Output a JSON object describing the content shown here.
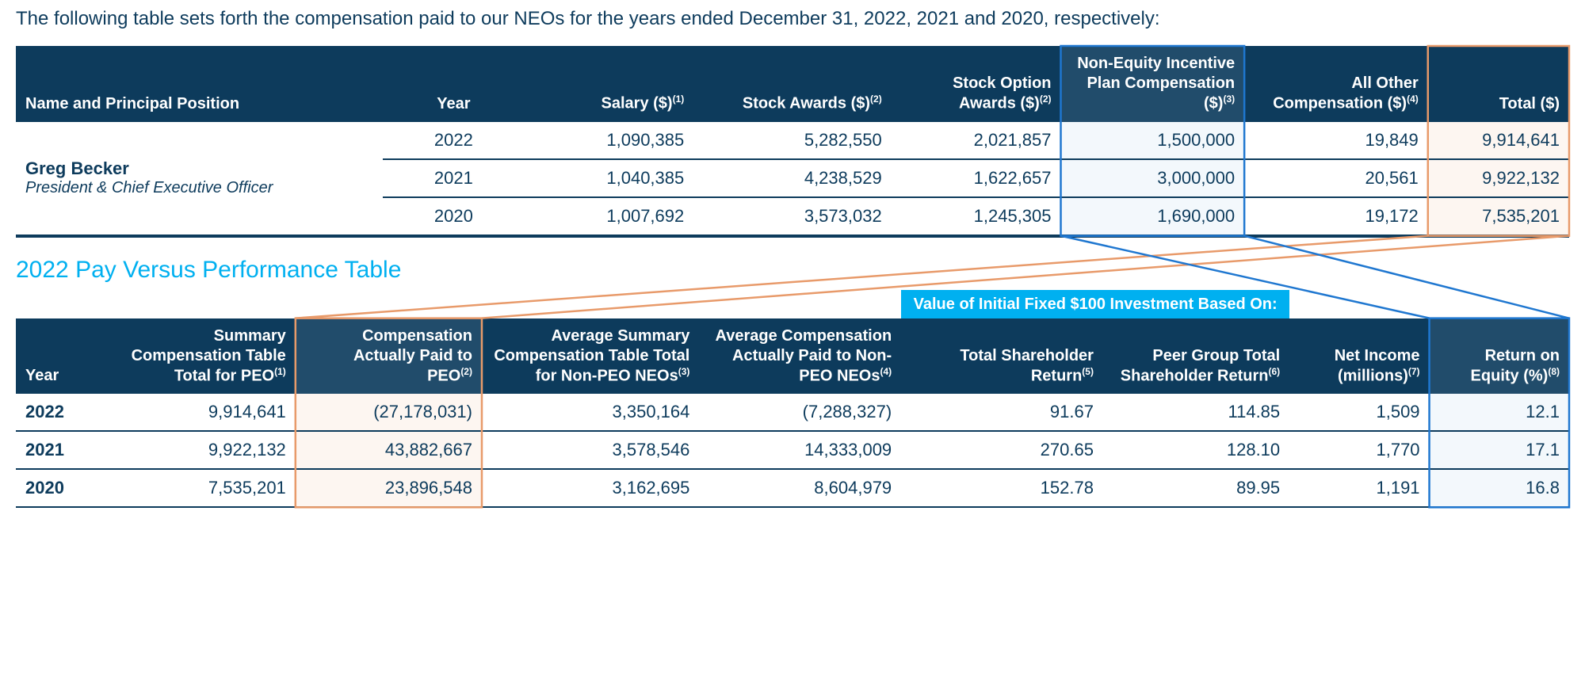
{
  "intro_text": "The following table sets forth the compensation paid to our NEOs for the years ended December 31, 2022, 2021 and 2020, respectively:",
  "section_title": "2022 Pay Versus Performance Table",
  "colors": {
    "header_bg": "#0d3b5c",
    "header_hl_bg": "#214c6b",
    "cyan": "#00b0f0",
    "cell_blue_hl": "#f3f8fc",
    "cell_orange_hl": "#fdf6f1",
    "border_blue": "#1f77d0",
    "border_orange": "#e89a6a",
    "text": "#0d3b5c"
  },
  "table1": {
    "col_widths_pct": [
      26,
      10,
      12,
      14,
      12,
      13,
      13,
      10
    ],
    "headers": {
      "name": "Name and Principal Position",
      "year": "Year",
      "salary": "Salary ($)",
      "salary_sup": "(1)",
      "stock_awards": "Stock Awards ($)",
      "stock_awards_sup": "(2)",
      "option_awards": "Stock Option Awards ($)",
      "option_awards_sup": "(2)",
      "non_equity": "Non-Equity Incentive Plan Compensation ($)",
      "non_equity_sup": "(3)",
      "all_other": "All Other Compensation ($)",
      "all_other_sup": "(4)",
      "total": "Total ($)"
    },
    "executive": {
      "name": "Greg Becker",
      "title": "President & Chief Executive Officer"
    },
    "rows": [
      {
        "year": "2022",
        "salary": "1,090,385",
        "stock_awards": "5,282,550",
        "option_awards": "2,021,857",
        "non_equity": "1,500,000",
        "all_other": "19,849",
        "total": "9,914,641"
      },
      {
        "year": "2021",
        "salary": "1,040,385",
        "stock_awards": "4,238,529",
        "option_awards": "1,622,657",
        "non_equity": "3,000,000",
        "all_other": "20,561",
        "total": "9,922,132"
      },
      {
        "year": "2020",
        "salary": "1,007,692",
        "stock_awards": "3,573,032",
        "option_awards": "1,245,305",
        "non_equity": "1,690,000",
        "all_other": "19,172",
        "total": "7,535,201"
      }
    ]
  },
  "table2": {
    "col_widths_pct": [
      5,
      13,
      12,
      14,
      13,
      13,
      12,
      9,
      9
    ],
    "super_header": "Value of Initial Fixed $100 Investment Based On:",
    "headers": {
      "year": "Year",
      "sct_peo": "Summary Compensation Table Total for PEO",
      "sct_peo_sup": "(1)",
      "cap_peo": "Compensation Actually Paid to PEO",
      "cap_peo_sup": "(2)",
      "avg_sct": "Average Summary Compensation Table Total for Non-PEO NEOs",
      "avg_sct_sup": "(3)",
      "avg_cap": "Average Compensation Actually Paid to Non-PEO NEOs",
      "avg_cap_sup": "(4)",
      "tsr": "Total Shareholder Return",
      "tsr_sup": "(5)",
      "peer_tsr": "Peer Group Total Shareholder Return",
      "peer_tsr_sup": "(6)",
      "net_income": "Net Income (millions)",
      "net_income_sup": "(7)",
      "roe": "Return on Equity (%)",
      "roe_sup": "(8)"
    },
    "rows": [
      {
        "year": "2022",
        "sct_peo": "9,914,641",
        "cap_peo": "(27,178,031)",
        "avg_sct": "3,350,164",
        "avg_cap": "(7,288,327)",
        "tsr": "91.67",
        "peer_tsr": "114.85",
        "net_income": "1,509",
        "roe": "12.1"
      },
      {
        "year": "2021",
        "sct_peo": "9,922,132",
        "cap_peo": "43,882,667",
        "avg_sct": "3,578,546",
        "avg_cap": "14,333,009",
        "tsr": "270.65",
        "peer_tsr": "128.10",
        "net_income": "1,770",
        "roe": "17.1"
      },
      {
        "year": "2020",
        "sct_peo": "7,535,201",
        "cap_peo": "23,896,548",
        "avg_sct": "3,162,695",
        "avg_cap": "8,604,979",
        "tsr": "152.78",
        "peer_tsr": "89.95",
        "net_income": "1,191",
        "roe": "16.8"
      }
    ]
  },
  "overlay": {
    "stroke_width": 2.5,
    "boxes": [
      {
        "id": "t1-nonequity",
        "color": "#1f77d0"
      },
      {
        "id": "t1-total",
        "color": "#e89a6a"
      },
      {
        "id": "t2-cap-peo",
        "color": "#e89a6a"
      },
      {
        "id": "t2-roe",
        "color": "#1f77d0"
      }
    ],
    "connectors": [
      {
        "from": "t1-total",
        "from_edge": "bottom-left",
        "to": "t2-cap-peo",
        "to_edge": "top-left",
        "color": "#e89a6a"
      },
      {
        "from": "t1-total",
        "from_edge": "bottom-right",
        "to": "t2-cap-peo",
        "to_edge": "top-right",
        "color": "#e89a6a"
      },
      {
        "from": "t1-nonequity",
        "from_edge": "bottom-left",
        "to": "t2-roe",
        "to_edge": "top-left",
        "color": "#1f77d0"
      },
      {
        "from": "t1-nonequity",
        "from_edge": "bottom-right",
        "to": "t2-roe",
        "to_edge": "top-right",
        "color": "#1f77d0"
      }
    ]
  }
}
